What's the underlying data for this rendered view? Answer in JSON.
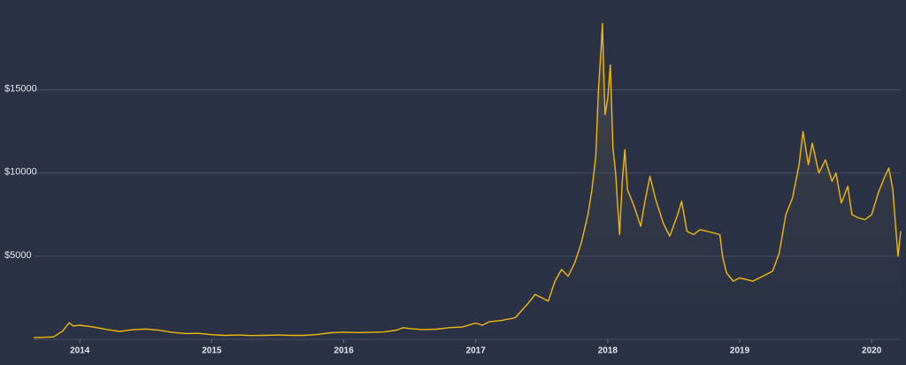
{
  "chart_data": {
    "type": "line",
    "x": [
      2013.65,
      2013.8,
      2013.87,
      2013.92,
      2013.95,
      2014.0,
      2014.1,
      2014.2,
      2014.3,
      2014.4,
      2014.5,
      2014.6,
      2014.7,
      2014.8,
      2014.9,
      2015.0,
      2015.1,
      2015.2,
      2015.3,
      2015.4,
      2015.5,
      2015.6,
      2015.7,
      2015.8,
      2015.9,
      2016.0,
      2016.1,
      2016.2,
      2016.3,
      2016.4,
      2016.45,
      2016.5,
      2016.6,
      2016.7,
      2016.8,
      2016.9,
      2017.0,
      2017.05,
      2017.1,
      2017.2,
      2017.3,
      2017.4,
      2017.45,
      2017.5,
      2017.55,
      2017.6,
      2017.65,
      2017.7,
      2017.75,
      2017.8,
      2017.85,
      2017.88,
      2017.91,
      2017.93,
      2017.95,
      2017.96,
      2017.97,
      2017.98,
      2018.0,
      2018.02,
      2018.04,
      2018.06,
      2018.08,
      2018.09,
      2018.11,
      2018.13,
      2018.15,
      2018.2,
      2018.25,
      2018.28,
      2018.32,
      2018.36,
      2018.42,
      2018.47,
      2018.53,
      2018.56,
      2018.6,
      2018.65,
      2018.7,
      2018.8,
      2018.85,
      2018.87,
      2018.9,
      2018.95,
      2019.0,
      2019.1,
      2019.2,
      2019.25,
      2019.3,
      2019.35,
      2019.4,
      2019.45,
      2019.48,
      2019.52,
      2019.55,
      2019.6,
      2019.65,
      2019.7,
      2019.73,
      2019.77,
      2019.82,
      2019.85,
      2019.9,
      2019.95,
      2020.0,
      2020.05,
      2020.1,
      2020.13,
      2020.16,
      2020.18,
      2020.2,
      2020.22
    ],
    "values": [
      100,
      150,
      500,
      1000,
      800,
      850,
      750,
      600,
      480,
      580,
      620,
      550,
      420,
      350,
      360,
      280,
      240,
      260,
      230,
      240,
      260,
      240,
      240,
      300,
      400,
      430,
      410,
      420,
      440,
      560,
      700,
      650,
      590,
      610,
      700,
      750,
      980,
      850,
      1050,
      1150,
      1300,
      2200,
      2700,
      2500,
      2300,
      3500,
      4200,
      3800,
      4600,
      5800,
      7500,
      9000,
      11000,
      15000,
      17500,
      19000,
      16000,
      13500,
      14500,
      16500,
      11500,
      10000,
      7500,
      6300,
      9500,
      11400,
      9000,
      8000,
      6800,
      8200,
      9800,
      8500,
      7000,
      6200,
      7500,
      8300,
      6500,
      6300,
      6600,
      6400,
      6300,
      5000,
      4000,
      3500,
      3700,
      3500,
      3900,
      4100,
      5200,
      7500,
      8500,
      10500,
      12500,
      10500,
      11800,
      10000,
      10800,
      9500,
      10000,
      8200,
      9200,
      7500,
      7300,
      7200,
      7500,
      8800,
      9800,
      10300,
      9000,
      7000,
      5000,
      6500
    ],
    "color": "#f0b90b",
    "xlim": [
      2013.65,
      2020.22
    ],
    "xticks": [
      2014,
      2015,
      2016,
      2017,
      2018,
      2019,
      2020
    ],
    "ylim": [
      0,
      20400
    ],
    "yticks": [
      {
        "value": 5000,
        "label": "$5000"
      },
      {
        "value": 10000,
        "label": "$10000"
      },
      {
        "value": 15000,
        "label": "$15000"
      }
    ],
    "grid": true
  }
}
